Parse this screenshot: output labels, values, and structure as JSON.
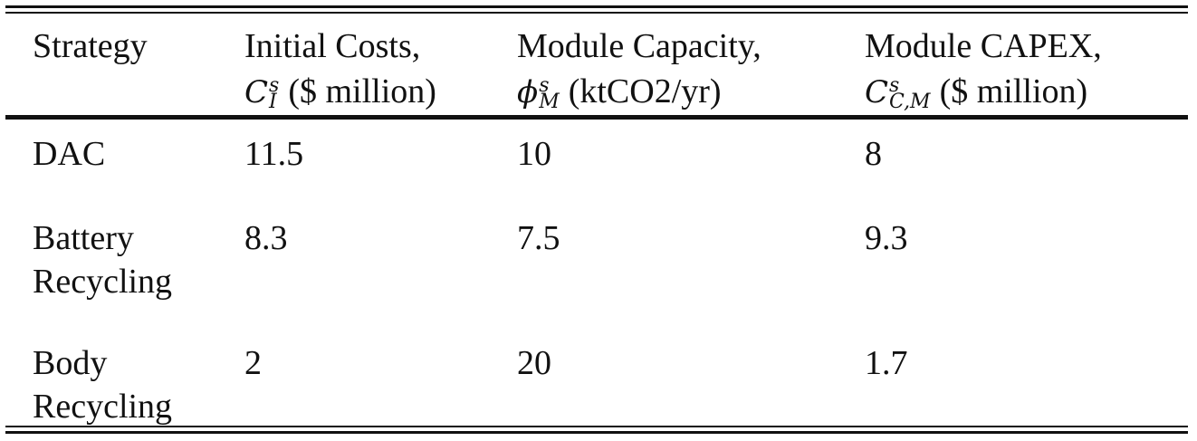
{
  "table": {
    "headers": [
      {
        "line1": "Strategy",
        "line2": ""
      },
      {
        "line1": "Initial Costs,",
        "symbol": "C",
        "sup": "s",
        "sub": "I",
        "unit": "($ million)"
      },
      {
        "line1": "Module Capacity,",
        "symbol": "ϕ",
        "sup": "s",
        "sub": "M",
        "unit": "(ktCO2/yr)"
      },
      {
        "line1": "Module CAPEX,",
        "symbol": "C",
        "sup": "s",
        "sub": "C,M",
        "unit": "($ million)"
      }
    ],
    "rows": [
      {
        "strategy_line1": "DAC",
        "strategy_line2": "",
        "initial_costs": "11.5",
        "module_capacity": "10",
        "module_capex": "8"
      },
      {
        "strategy_line1": "Battery",
        "strategy_line2": "Recycling",
        "initial_costs": "8.3",
        "module_capacity": "7.5",
        "module_capex": "9.3"
      },
      {
        "strategy_line1": "Body",
        "strategy_line2": "Recycling",
        "initial_costs": "2",
        "module_capacity": "20",
        "module_capex": "1.7"
      }
    ]
  }
}
